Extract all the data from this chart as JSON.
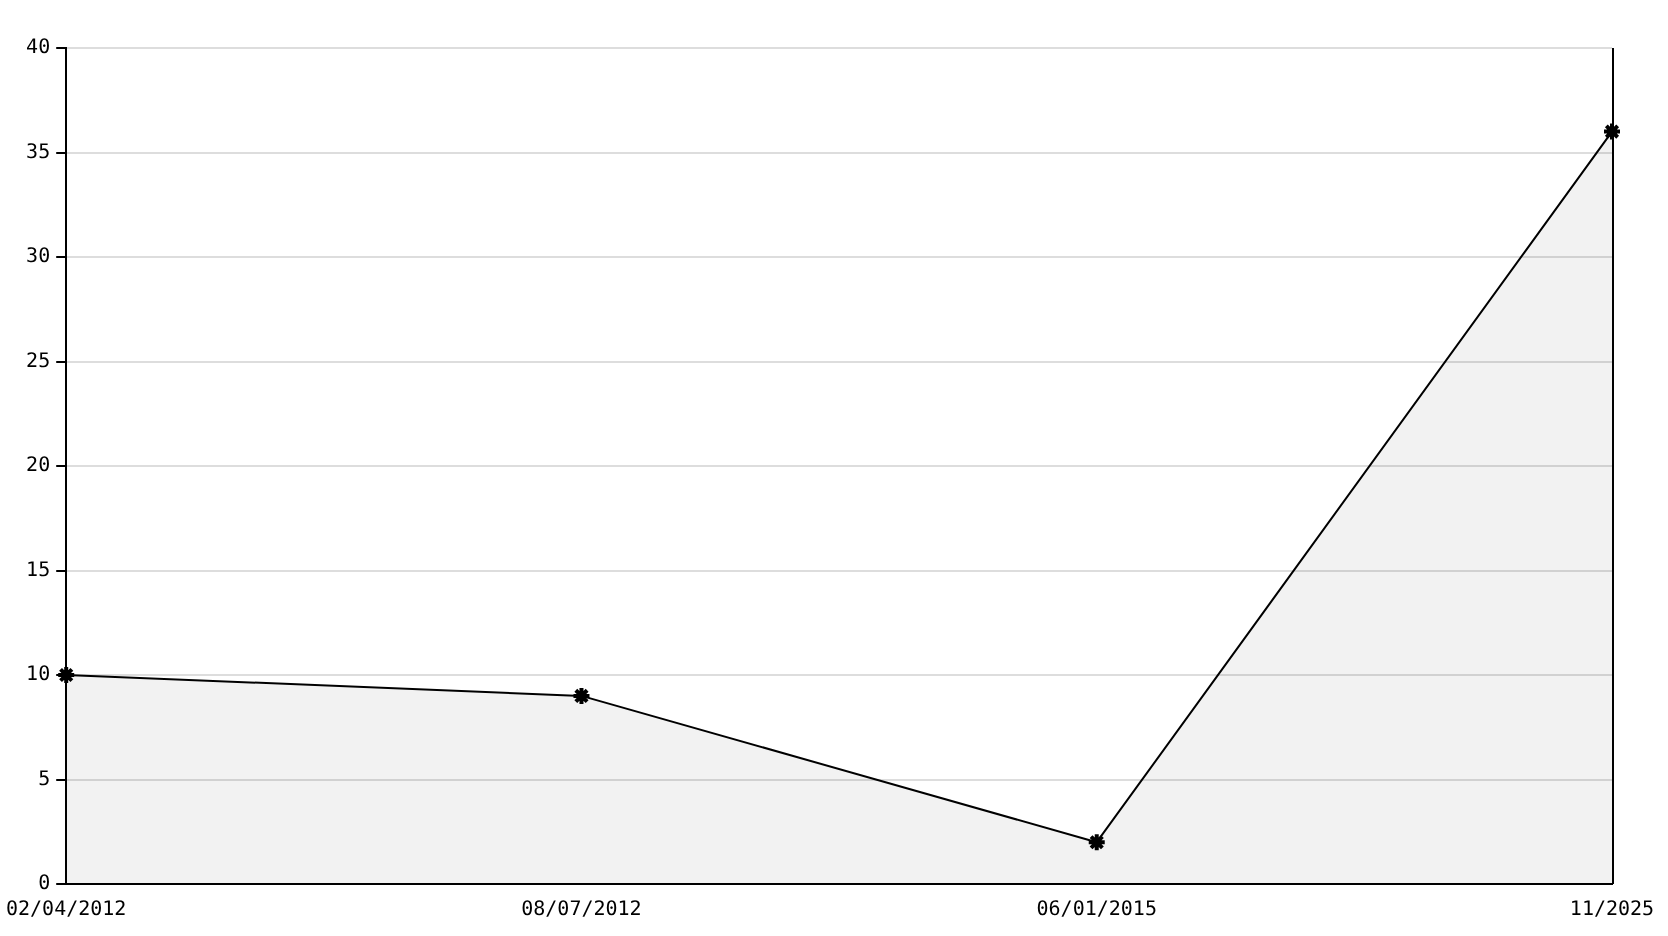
{
  "chart_data": {
    "type": "area",
    "categories": [
      "02/04/2012",
      "08/07/2012",
      "06/01/2015",
      "11/2025"
    ],
    "series": [
      {
        "color": "#000000",
        "values": [
          10,
          9,
          2,
          36
        ]
      }
    ],
    "ylim": [
      0,
      40
    ],
    "yticks": [
      0,
      5,
      10,
      15,
      20,
      25,
      30,
      35,
      40
    ],
    "grid": "y",
    "legend": false,
    "marker": "cross",
    "line_style": "solid"
  }
}
